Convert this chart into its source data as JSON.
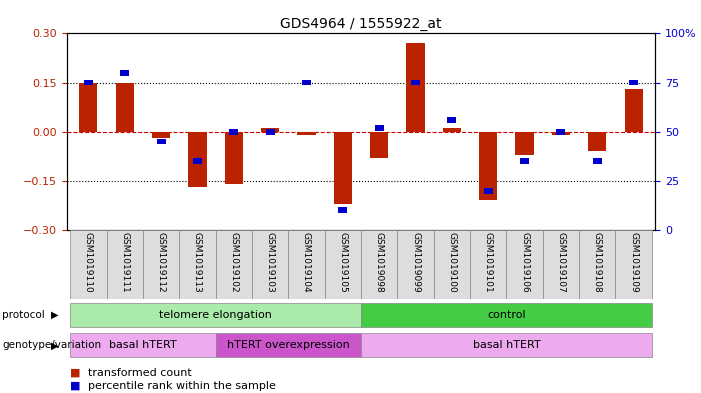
{
  "title": "GDS4964 / 1555922_at",
  "samples": [
    "GSM1019110",
    "GSM1019111",
    "GSM1019112",
    "GSM1019113",
    "GSM1019102",
    "GSM1019103",
    "GSM1019104",
    "GSM1019105",
    "GSM1019098",
    "GSM1019099",
    "GSM1019100",
    "GSM1019101",
    "GSM1019106",
    "GSM1019107",
    "GSM1019108",
    "GSM1019109"
  ],
  "red_values": [
    0.15,
    0.15,
    -0.02,
    -0.17,
    -0.16,
    0.01,
    -0.01,
    -0.22,
    -0.08,
    0.27,
    0.01,
    -0.21,
    -0.07,
    -0.01,
    -0.06,
    0.13
  ],
  "blue_percent": [
    75,
    80,
    45,
    35,
    50,
    50,
    75,
    10,
    52,
    75,
    56,
    20,
    35,
    50,
    35,
    75
  ],
  "ylim": [
    -0.3,
    0.3
  ],
  "yticks_left": [
    -0.3,
    -0.15,
    0,
    0.15,
    0.3
  ],
  "yticks_right": [
    0,
    25,
    50,
    75,
    100
  ],
  "red_color": "#bb2200",
  "blue_color": "#0000cc",
  "dotted_line_color": "#000000",
  "zero_line_color": "#cc0000",
  "bg_color": "#ffffff",
  "plot_bg_color": "#ffffff",
  "protocol_telomere": {
    "label": "telomere elongation",
    "start": 0,
    "end": 8,
    "color": "#aaeaaa"
  },
  "protocol_control": {
    "label": "control",
    "start": 8,
    "end": 16,
    "color": "#44cc44"
  },
  "genotype_basal1": {
    "label": "basal hTERT",
    "start": 0,
    "end": 4,
    "color": "#eeaaee"
  },
  "genotype_hTERT": {
    "label": "hTERT overexpression",
    "start": 4,
    "end": 8,
    "color": "#cc55cc"
  },
  "genotype_basal2": {
    "label": "basal hTERT",
    "start": 8,
    "end": 16,
    "color": "#eeaaee"
  },
  "red_bar_width": 0.5,
  "blue_bar_width": 0.25,
  "blue_bar_height": 0.018,
  "legend_red": "transformed count",
  "legend_blue": "percentile rank within the sample"
}
